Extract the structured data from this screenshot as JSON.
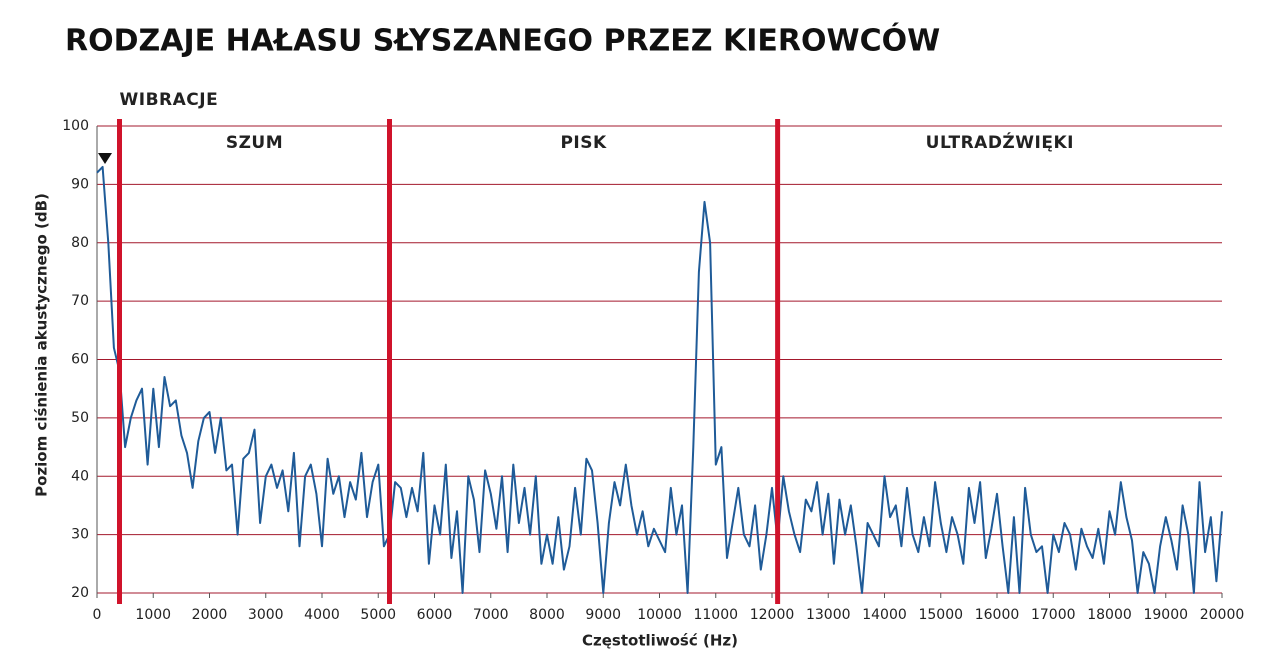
{
  "chart_data": {
    "type": "line",
    "title": "RODZAJE HAŁASU SŁYSZANEGO PRZEZ KIEROWCÓW",
    "xlabel": "Częstotliwość (Hz)",
    "ylabel": "Poziom ciśnienia akustycznego (dB)",
    "regions": [
      "WIBRACJE",
      "SZUM",
      "PISK",
      "ULTRADŹWIĘKI"
    ],
    "dividers": [
      400,
      5200,
      12100
    ],
    "color": "#1f5b98",
    "grid": true,
    "xlim": [
      0,
      20000
    ],
    "xticks": [
      0,
      1000,
      2000,
      3000,
      4000,
      5000,
      6000,
      7000,
      8000,
      9000,
      10000,
      11000,
      12000,
      13000,
      14000,
      15000,
      16000,
      17000,
      18000,
      19000,
      20000
    ],
    "ylim": [
      20,
      100
    ],
    "yticks": [
      20,
      30,
      40,
      50,
      60,
      70,
      80,
      90,
      100
    ],
    "x": [
      0,
      100,
      200,
      300,
      400,
      500,
      600,
      700,
      800,
      900,
      1000,
      1100,
      1200,
      1300,
      1400,
      1500,
      1600,
      1700,
      1800,
      1900,
      2000,
      2100,
      2200,
      2300,
      2400,
      2500,
      2600,
      2700,
      2800,
      2900,
      3000,
      3100,
      3200,
      3300,
      3400,
      3500,
      3600,
      3700,
      3800,
      3900,
      4000,
      4100,
      4200,
      4300,
      4400,
      4500,
      4600,
      4700,
      4800,
      4900,
      5000,
      5100,
      5200,
      5300,
      5400,
      5500,
      5600,
      5700,
      5800,
      5900,
      6000,
      6100,
      6200,
      6300,
      6400,
      6500,
      6600,
      6700,
      6800,
      6900,
      7000,
      7100,
      7200,
      7300,
      7400,
      7500,
      7600,
      7700,
      7800,
      7900,
      8000,
      8100,
      8200,
      8300,
      8400,
      8500,
      8600,
      8700,
      8800,
      8900,
      9000,
      9100,
      9200,
      9300,
      9400,
      9500,
      9600,
      9700,
      9800,
      9900,
      10000,
      10100,
      10200,
      10300,
      10400,
      10500,
      10600,
      10700,
      10800,
      10900,
      11000,
      11100,
      11200,
      11300,
      11400,
      11500,
      11600,
      11700,
      11800,
      11900,
      12000,
      12100,
      12200,
      12300,
      12400,
      12500,
      12600,
      12700,
      12800,
      12900,
      13000,
      13100,
      13200,
      13300,
      13400,
      13500,
      13600,
      13700,
      13800,
      13900,
      14000,
      14100,
      14200,
      14300,
      14400,
      14500,
      14600,
      14700,
      14800,
      14900,
      15000,
      15100,
      15200,
      15300,
      15400,
      15500,
      15600,
      15700,
      15800,
      15900,
      16000,
      16100,
      16200,
      16300,
      16400,
      16500,
      16600,
      16700,
      16800,
      16900,
      17000,
      17100,
      17200,
      17300,
      17400,
      17500,
      17600,
      17700,
      17800,
      17900,
      18000,
      18100,
      18200,
      18300,
      18400,
      18500,
      18600,
      18700,
      18800,
      18900,
      19000,
      19100,
      19200,
      19300,
      19400,
      19500,
      19600,
      19700,
      19800,
      19900,
      20000
    ],
    "values": [
      92,
      93,
      80,
      62,
      58,
      45,
      50,
      53,
      55,
      42,
      55,
      45,
      57,
      52,
      53,
      47,
      44,
      38,
      46,
      50,
      51,
      44,
      50,
      41,
      42,
      30,
      43,
      44,
      48,
      32,
      40,
      42,
      38,
      41,
      34,
      44,
      28,
      40,
      42,
      37,
      28,
      43,
      37,
      40,
      33,
      39,
      36,
      44,
      33,
      39,
      42,
      28,
      30,
      39,
      38,
      33,
      38,
      34,
      44,
      25,
      35,
      30,
      42,
      26,
      34,
      20,
      40,
      36,
      27,
      41,
      37,
      31,
      40,
      27,
      42,
      32,
      38,
      30,
      40,
      25,
      30,
      25,
      33,
      24,
      28,
      38,
      30,
      43,
      41,
      32,
      20,
      32,
      39,
      35,
      42,
      35,
      30,
      34,
      28,
      31,
      29,
      27,
      38,
      30,
      35,
      20,
      45,
      75,
      87,
      80,
      42,
      45,
      26,
      32,
      38,
      30,
      28,
      35,
      24,
      30,
      38,
      29,
      40,
      34,
      30,
      27,
      36,
      34,
      39,
      30,
      37,
      25,
      36,
      30,
      35,
      28,
      20,
      32,
      30,
      28,
      40,
      33,
      35,
      28,
      38,
      30,
      27,
      33,
      28,
      39,
      32,
      27,
      33,
      30,
      25,
      38,
      32,
      39,
      26,
      31,
      37,
      28,
      20,
      33,
      20,
      38,
      30,
      27,
      28,
      20,
      30,
      27,
      32,
      30,
      24,
      31,
      28,
      26,
      31,
      25,
      34,
      30,
      39,
      33,
      29,
      20,
      27,
      25,
      20,
      28,
      33,
      29,
      24,
      35,
      30,
      20,
      39,
      27,
      33,
      22,
      34
    ]
  }
}
